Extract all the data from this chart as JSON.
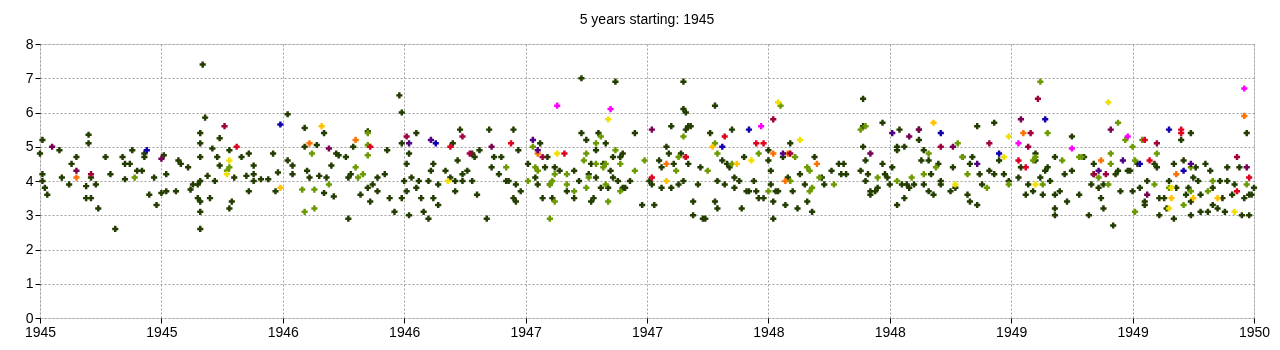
{
  "chart_data": {
    "type": "scatter",
    "title": "5 years starting: 1945",
    "xlim": [
      1945,
      1950
    ],
    "ylim": [
      0,
      8
    ],
    "xticks": [
      1945,
      {
        "value": 1945.5,
        "label": "1945"
      },
      1946,
      {
        "value": 1946.5,
        "label": "1946"
      },
      1947,
      {
        "value": 1947.5,
        "label": "1947"
      },
      1948,
      {
        "value": 1948.5,
        "label": "1948"
      },
      1949,
      {
        "value": 1949.5,
        "label": "1949"
      },
      1950
    ],
    "yticks": [
      0,
      1,
      2,
      3,
      4,
      5,
      6,
      7,
      8
    ],
    "grid": true,
    "legend": false,
    "marker": "cross",
    "series": [
      {
        "color": "#233d00",
        "x": [
          1945.0,
          1945.01,
          1945.01,
          1945.01,
          1945.02,
          1945.03,
          1945.08,
          1945.09,
          1945.12,
          1945.13,
          1945.15,
          1945.19,
          1945.19,
          1945.2,
          1945.2,
          1945.21,
          1945.21,
          1945.23,
          1945.24,
          1945.27,
          1945.29,
          1945.31,
          1945.34,
          1945.35,
          1945.35,
          1945.37,
          1945.38,
          1945.4,
          1945.42,
          1945.43,
          1945.43,
          1945.45,
          1945.47,
          1945.48,
          1945.5,
          1945.51,
          1945.52,
          1945.52,
          1945.56,
          1945.57,
          1945.58,
          1945.61,
          1945.62,
          1945.63,
          1945.65,
          1945.65,
          1945.66,
          1945.66,
          1945.66,
          1945.66,
          1945.66,
          1945.66,
          1945.66,
          1945.67,
          1945.68,
          1945.69,
          1945.7,
          1945.71,
          1945.72,
          1945.73,
          1945.74,
          1945.74,
          1945.78,
          1945.78,
          1945.79,
          1945.8,
          1945.83,
          1945.85,
          1945.86,
          1945.86,
          1945.88,
          1945.88,
          1945.88,
          1945.91,
          1945.94,
          1945.96,
          1945.97,
          1945.98,
          1946.02,
          1946.02,
          1946.04,
          1946.04,
          1946.09,
          1946.09,
          1946.1,
          1946.11,
          1946.14,
          1946.15,
          1946.17,
          1946.17,
          1946.18,
          1946.2,
          1946.21,
          1946.22,
          1946.23,
          1946.26,
          1946.27,
          1946.27,
          1946.28,
          1946.29,
          1946.32,
          1946.35,
          1946.35,
          1946.36,
          1946.37,
          1946.39,
          1946.39,
          1946.42,
          1946.43,
          1946.44,
          1946.46,
          1946.48,
          1946.49,
          1946.49,
          1946.49,
          1946.5,
          1946.51,
          1946.51,
          1946.52,
          1946.52,
          1946.53,
          1946.55,
          1946.55,
          1946.56,
          1946.57,
          1946.58,
          1946.6,
          1946.6,
          1946.61,
          1946.62,
          1946.62,
          1946.64,
          1946.64,
          1946.67,
          1946.69,
          1946.7,
          1946.71,
          1946.71,
          1946.72,
          1946.73,
          1946.74,
          1946.74,
          1946.76,
          1946.78,
          1946.78,
          1946.79,
          1946.8,
          1946.81,
          1946.84,
          1946.85,
          1946.86,
          1946.87,
          1946.89,
          1946.9,
          1946.92,
          1946.93,
          1946.95,
          1946.95,
          1946.96,
          1946.96,
          1946.97,
          1946.98,
          1947.01,
          1947.04,
          1947.05,
          1947.06,
          1947.07,
          1947.08,
          1947.09,
          1947.1,
          1947.11,
          1947.12,
          1947.14,
          1947.17,
          1947.2,
          1947.2,
          1947.22,
          1947.23,
          1947.23,
          1947.25,
          1947.26,
          1947.27,
          1947.27,
          1947.28,
          1947.29,
          1947.29,
          1947.3,
          1947.31,
          1947.32,
          1947.33,
          1947.34,
          1947.35,
          1947.36,
          1947.36,
          1947.37,
          1947.38,
          1947.39,
          1947.4,
          1947.4,
          1947.41,
          1947.43,
          1947.45,
          1947.48,
          1947.51,
          1947.52,
          1947.53,
          1947.55,
          1947.56,
          1947.56,
          1947.58,
          1947.59,
          1947.6,
          1947.6,
          1947.61,
          1947.63,
          1947.64,
          1947.65,
          1947.65,
          1947.65,
          1947.66,
          1947.66,
          1947.66,
          1947.67,
          1947.67,
          1947.68,
          1947.69,
          1947.69,
          1947.71,
          1947.72,
          1947.73,
          1947.74,
          1947.76,
          1947.78,
          1947.78,
          1947.79,
          1947.79,
          1947.81,
          1947.82,
          1947.83,
          1947.84,
          1947.85,
          1947.86,
          1947.86,
          1947.88,
          1947.89,
          1947.9,
          1947.91,
          1947.92,
          1947.94,
          1947.95,
          1947.96,
          1947.98,
          1948.0,
          1948.0,
          1948.01,
          1948.01,
          1948.02,
          1948.02,
          1948.03,
          1948.04,
          1948.06,
          1948.07,
          1948.08,
          1948.09,
          1948.1,
          1948.12,
          1948.13,
          1948.15,
          1948.16,
          1948.18,
          1948.19,
          1948.22,
          1948.23,
          1948.26,
          1948.29,
          1948.3,
          1948.31,
          1948.32,
          1948.38,
          1948.39,
          1948.39,
          1948.39,
          1948.4,
          1948.4,
          1948.41,
          1948.42,
          1948.42,
          1948.44,
          1948.45,
          1948.47,
          1948.47,
          1948.48,
          1948.49,
          1948.5,
          1948.51,
          1948.53,
          1948.53,
          1948.53,
          1948.54,
          1948.55,
          1948.56,
          1948.56,
          1948.57,
          1948.58,
          1948.6,
          1948.62,
          1948.62,
          1948.63,
          1948.64,
          1948.64,
          1948.66,
          1948.66,
          1948.67,
          1948.68,
          1948.7,
          1948.71,
          1948.71,
          1948.75,
          1948.76,
          1948.77,
          1948.8,
          1948.82,
          1948.83,
          1948.83,
          1948.84,
          1948.86,
          1948.86,
          1948.87,
          1948.88,
          1948.91,
          1948.93,
          1948.93,
          1948.95,
          1948.97,
          1948.99,
          1949.03,
          1949.04,
          1949.06,
          1949.07,
          1949.09,
          1949.1,
          1949.1,
          1949.12,
          1949.13,
          1949.14,
          1949.15,
          1949.16,
          1949.18,
          1949.18,
          1949.18,
          1949.18,
          1949.2,
          1949.22,
          1949.23,
          1949.25,
          1949.25,
          1949.28,
          1949.3,
          1949.32,
          1949.33,
          1949.34,
          1949.34,
          1949.36,
          1949.37,
          1949.38,
          1949.38,
          1949.42,
          1949.43,
          1949.44,
          1949.45,
          1949.48,
          1949.49,
          1949.5,
          1949.52,
          1949.53,
          1949.55,
          1949.55,
          1949.56,
          1949.59,
          1949.6,
          1949.61,
          1949.61,
          1949.63,
          1949.64,
          1949.65,
          1949.67,
          1949.67,
          1949.68,
          1949.7,
          1949.71,
          1949.72,
          1949.73,
          1949.74,
          1949.74,
          1949.74,
          1949.75,
          1949.76,
          1949.77,
          1949.78,
          1949.78,
          1949.8,
          1949.81,
          1949.82,
          1949.83,
          1949.83,
          1949.85,
          1949.86,
          1949.87,
          1949.88,
          1949.89,
          1949.89,
          1949.91,
          1949.92,
          1949.94,
          1949.95,
          1949.96,
          1949.97,
          1949.98,
          1949.98,
          1949.99,
          1950.0
        ],
        "values": [
          4.8,
          5.2,
          4.2,
          4.0,
          3.8,
          3.6,
          4.9,
          4.1,
          3.9,
          4.5,
          4.7,
          3.5,
          3.85,
          5.35,
          5.1,
          3.5,
          4.1,
          3.9,
          3.2,
          4.7,
          4.2,
          2.6,
          4.7,
          4.05,
          4.5,
          4.5,
          4.9,
          4.3,
          4.3,
          4.8,
          4.7,
          3.6,
          4.1,
          3.3,
          3.65,
          4.75,
          3.7,
          4.2,
          3.7,
          4.6,
          4.5,
          4.4,
          3.75,
          3.9,
          3.5,
          3.9,
          5.4,
          5.1,
          4.7,
          3.4,
          3.1,
          2.6,
          4.0,
          7.4,
          5.85,
          4.15,
          3.5,
          4.95,
          4.0,
          4.7,
          5.25,
          4.45,
          4.9,
          3.2,
          3.4,
          4.1,
          4.7,
          4.15,
          3.7,
          4.8,
          4.45,
          4.2,
          4.0,
          4.05,
          4.05,
          4.8,
          3.7,
          4.25,
          4.6,
          5.95,
          4.45,
          4.2,
          5.0,
          5.55,
          4.3,
          4.1,
          5.05,
          4.15,
          5.4,
          3.65,
          4.1,
          4.45,
          3.55,
          4.8,
          4.75,
          4.7,
          2.9,
          4.1,
          4.2,
          5.0,
          3.6,
          5.45,
          3.8,
          3.4,
          3.9,
          4.1,
          3.7,
          4.2,
          4.9,
          3.5,
          3.1,
          6.5,
          6.0,
          5.1,
          3.5,
          4.0,
          3.7,
          4.5,
          3.0,
          4.8,
          4.1,
          5.4,
          3.8,
          4.0,
          3.5,
          3.1,
          4.0,
          2.9,
          4.3,
          3.5,
          4.5,
          3.3,
          3.9,
          4.3,
          4.1,
          5.1,
          3.7,
          4.0,
          4.6,
          5.5,
          4.2,
          4.0,
          4.3,
          4.8,
          4.0,
          4.7,
          3.6,
          4.9,
          2.9,
          5.5,
          4.4,
          4.7,
          4.2,
          4.7,
          4.0,
          4.0,
          5.5,
          3.5,
          3.4,
          3.9,
          4.9,
          3.7,
          4.5,
          4.1,
          3.9,
          5.1,
          3.5,
          4.4,
          4.7,
          3.9,
          3.5,
          4.4,
          4.3,
          3.7,
          3.5,
          4.3,
          4.0,
          7.0,
          5.4,
          5.2,
          4.2,
          4.5,
          3.4,
          3.5,
          4.1,
          4.9,
          5.4,
          3.8,
          4.5,
          5.1,
          3.8,
          4.3,
          4.7,
          4.1,
          6.9,
          4.0,
          4.7,
          3.8,
          4.8,
          3.8,
          4.0,
          5.4,
          3.3,
          4.0,
          3.9,
          3.3,
          4.6,
          3.8,
          4.4,
          5.0,
          4.8,
          5.6,
          3.8,
          4.5,
          3.9,
          4.8,
          4.0,
          6.9,
          6.1,
          6.0,
          5.5,
          4.7,
          4.5,
          5.6,
          5.6,
          3.4,
          3.0,
          3.9,
          4.4,
          2.9,
          2.9,
          5.4,
          6.2,
          3.4,
          3.2,
          4.0,
          4.6,
          3.9,
          4.5,
          4.4,
          5.5,
          4.1,
          3.8,
          4.0,
          3.2,
          4.7,
          3.7,
          3.7,
          4.0,
          3.7,
          3.5,
          3.5,
          4.9,
          4.6,
          3.9,
          4.3,
          3.4,
          2.9,
          3.7,
          3.7,
          4.7,
          3.3,
          4.1,
          5.1,
          3.7,
          3.2,
          4.2,
          3.9,
          3.4,
          3.1,
          4.7,
          4.1,
          3.9,
          4.3,
          4.5,
          4.2,
          4.5,
          4.2,
          4.3,
          5.0,
          5.6,
          6.4,
          4.6,
          4.0,
          4.2,
          3.7,
          3.6,
          3.7,
          3.8,
          5.7,
          4.5,
          4.2,
          4.1,
          3.9,
          4.4,
          3.3,
          5.0,
          4.9,
          5.5,
          3.9,
          5.0,
          3.5,
          3.9,
          3.8,
          3.9,
          5.5,
          5.2,
          4.6,
          4.9,
          3.9,
          4.6,
          3.7,
          4.2,
          3.6,
          4.5,
          3.9,
          4.0,
          3.7,
          4.4,
          3.8,
          4.7,
          3.6,
          4.5,
          3.4,
          4.7,
          5.6,
          3.3,
          4.2,
          3.9,
          4.3,
          4.2,
          5.7,
          4.6,
          4.2,
          4.0,
          4.1,
          4.4,
          3.6,
          3.9,
          3.7,
          4.8,
          4.6,
          4.1,
          3.6,
          4.3,
          4.4,
          4.0,
          4.7,
          3.6,
          3.0,
          3.2,
          3.7,
          4.2,
          3.4,
          5.3,
          4.3,
          3.6,
          4.7,
          3.0,
          3.9,
          4.5,
          4.2,
          3.8,
          3.5,
          3.2,
          3.9,
          2.7,
          4.2,
          4.3,
          3.7,
          4.3,
          4.3,
          3.7,
          4.5,
          3.8,
          3.3,
          3.4,
          4.0,
          4.5,
          4.4,
          3.5,
          3.0,
          3.5,
          3.2,
          4.0,
          2.9,
          4.5,
          3.8,
          5.2,
          4.6,
          3.6,
          3.8,
          3.4,
          3.0,
          5.4,
          4.1,
          4.4,
          4.0,
          3.1,
          3.6,
          4.5,
          3.1,
          4.3,
          3.8,
          3.3,
          3.2,
          4.0,
          3.5,
          3.1,
          4.0,
          4.4,
          3.6,
          3.9,
          4.4,
          3.0,
          3.5,
          5.4,
          3.0,
          3.6,
          3.6,
          3.8
        ]
      },
      {
        "color": "#6b9a00",
        "x": [
          1945.39,
          1945.77,
          1945.78,
          1946.08,
          1946.09,
          1946.12,
          1946.13,
          1946.13,
          1946.19,
          1946.3,
          1946.31,
          1946.33,
          1946.35,
          1946.35,
          1946.35,
          1946.92,
          1947.01,
          1947.03,
          1947.04,
          1947.05,
          1947.1,
          1947.11,
          1947.12,
          1947.1,
          1947.12,
          1947.17,
          1947.17,
          1947.2,
          1947.24,
          1947.25,
          1947.25,
          1947.26,
          1947.29,
          1947.29,
          1947.31,
          1947.32,
          1947.33,
          1947.33,
          1947.34,
          1947.37,
          1947.39,
          1947.39,
          1947.45,
          1947.49,
          1947.62,
          1947.63,
          1947.65,
          1947.75,
          1947.78,
          1947.79,
          1947.85,
          1947.96,
          1948.0,
          1948.05,
          1948.09,
          1948.11,
          1948.16,
          1948.17,
          1948.17,
          1948.18,
          1948.21,
          1948.27,
          1948.38,
          1948.4,
          1948.45,
          1948.53,
          1948.59,
          1948.64,
          1948.66,
          1948.69,
          1948.78,
          1948.8,
          1948.82,
          1948.9,
          1948.99,
          1949.09,
          1949.1,
          1949.12,
          1949.13,
          1949.15,
          1949.21,
          1949.28,
          1949.29,
          1949.36,
          1949.4,
          1949.41,
          1949.41,
          1949.44,
          1949.47,
          1949.5,
          1949.51,
          1949.51,
          1949.54,
          1949.59,
          1949.6,
          1949.65,
          1949.71,
          1949.74,
          1949.74,
          1949.81,
          1949.83,
          1949.97
        ],
        "values": [
          4.1,
          4.3,
          4.4,
          3.75,
          3.1,
          4.8,
          3.75,
          3.2,
          3.9,
          4.4,
          4.1,
          4.2,
          5.4,
          4.75,
          5.05,
          4.4,
          4.0,
          5.0,
          4.4,
          4.3,
          3.9,
          4.0,
          3.4,
          2.9,
          4.2,
          3.9,
          4.2,
          3.7,
          4.6,
          3.8,
          4.8,
          4.1,
          5.1,
          4.5,
          5.3,
          4.4,
          4.5,
          3.9,
          3.4,
          4.9,
          4.5,
          3.7,
          4.3,
          4.6,
          4.3,
          4.7,
          5.3,
          4.3,
          5.1,
          4.8,
          4.5,
          4.8,
          3.7,
          6.2,
          4.0,
          4.7,
          4.4,
          4.3,
          3.7,
          3.8,
          4.1,
          3.9,
          5.5,
          5.6,
          4.1,
          4.0,
          4.1,
          4.2,
          4.8,
          4.4,
          5.1,
          4.7,
          4.2,
          3.8,
          3.9,
          4.6,
          4.7,
          6.9,
          3.9,
          5.4,
          4.6,
          4.7,
          4.7,
          4.1,
          3.9,
          4.8,
          4.5,
          5.7,
          5.2,
          5.0,
          4.6,
          3.1,
          5.2,
          3.9,
          4.8,
          3.8,
          3.3,
          4.4,
          3.7,
          3.7,
          4.0,
          3.9
        ]
      },
      {
        "color": "#f0e000",
        "x": [
          1945.77,
          1945.78,
          1946.68,
          1947.13,
          1947.34,
          1947.93,
          1948.04,
          1948.13,
          1948.77,
          1948.97,
          1948.99,
          1949.1,
          1949.4,
          1949.65,
          1949.66,
          1949.92
        ],
        "values": [
          4.2,
          4.6,
          4.0,
          4.8,
          5.8,
          4.6,
          6.3,
          5.2,
          3.9,
          4.7,
          5.3,
          3.9,
          6.3,
          3.2,
          3.8,
          3.1
        ]
      },
      {
        "color": "#ffc000",
        "x": [
          1945.99,
          1946.16,
          1947.58,
          1947.77,
          1947.87,
          1948.68,
          1949.66,
          1949.75,
          1949.85
        ],
        "values": [
          3.8,
          5.6,
          4.0,
          5.0,
          4.5,
          5.7,
          3.5,
          3.5,
          3.5
        ]
      },
      {
        "color": "#ff7000",
        "x": [
          1945.15,
          1946.11,
          1946.3,
          1947.05,
          1947.58,
          1948.02,
          1948.07,
          1948.08,
          1948.2,
          1949.05,
          1949.37,
          1949.68,
          1949.96
        ],
        "values": [
          4.1,
          5.1,
          5.2,
          4.8,
          4.5,
          4.8,
          4.0,
          4.8,
          4.5,
          5.4,
          4.6,
          4.2,
          5.9
        ]
      },
      {
        "color": "#e00020",
        "x": [
          1945.81,
          1946.36,
          1946.69,
          1946.94,
          1947.16,
          1947.52,
          1947.66,
          1947.82,
          1947.95,
          1947.98,
          1949.03,
          1949.06,
          1949.55,
          1949.57,
          1949.7,
          1949.7,
          1949.93,
          1949.98
        ],
        "values": [
          5.0,
          5.0,
          5.0,
          5.1,
          4.8,
          4.1,
          4.7,
          5.3,
          5.1,
          5.1,
          4.6,
          4.4,
          5.2,
          4.6,
          5.5,
          5.4,
          3.7,
          4.1
        ]
      },
      {
        "color": "#a0003c",
        "x": [
          1945.21,
          1945.76,
          1946.51,
          1946.74,
          1946.77,
          1947.07,
          1948.02,
          1948.09,
          1948.71,
          1948.91,
          1949.07,
          1949.08,
          1949.11,
          1949.34,
          1949.39,
          1949.6,
          1949.93
        ],
        "values": [
          4.2,
          5.6,
          5.3,
          5.3,
          4.8,
          4.7,
          5.8,
          4.8,
          5.0,
          5.1,
          5.0,
          5.4,
          6.4,
          4.2,
          4.2,
          5.1,
          4.7
        ]
      },
      {
        "color": "#780050",
        "x": [
          1945.05,
          1945.15,
          1945.5,
          1946.19,
          1946.86,
          1947.52,
          1948.42,
          1948.58,
          1948.62,
          1948.76,
          1949.04,
          1949.41,
          1949.56,
          1949.97
        ],
        "values": [
          5.0,
          4.3,
          4.65,
          4.95,
          5.0,
          5.5,
          4.8,
          5.3,
          5.5,
          5.0,
          5.8,
          5.5,
          3.6,
          4.4
        ]
      },
      {
        "color": "#500080",
        "x": [
          1946.52,
          1946.61,
          1947.03,
          1947.05,
          1948.06,
          1948.51,
          1948.86,
          1949.36,
          1949.46,
          1949.74
        ],
        "values": [
          5.1,
          5.2,
          5.2,
          4.9,
          4.8,
          5.4,
          4.5,
          4.3,
          4.6,
          4.5
        ]
      },
      {
        "color": "#1000b0",
        "x": [
          1945.44,
          1945.99,
          1946.63,
          1947.81,
          1947.92,
          1948.71,
          1948.95,
          1949.14,
          1949.53,
          1949.65,
          1949.71
        ],
        "values": [
          4.9,
          5.65,
          5.1,
          5.0,
          5.5,
          5.4,
          4.8,
          5.8,
          4.5,
          5.5,
          4.3
        ]
      },
      {
        "color": "#ff00ff",
        "x": [
          1947.13,
          1947.35,
          1947.97,
          1949.03,
          1949.25,
          1949.48,
          1949.96
        ],
        "values": [
          6.2,
          6.1,
          5.6,
          5.1,
          4.95,
          5.3,
          6.7
        ]
      }
    ]
  }
}
